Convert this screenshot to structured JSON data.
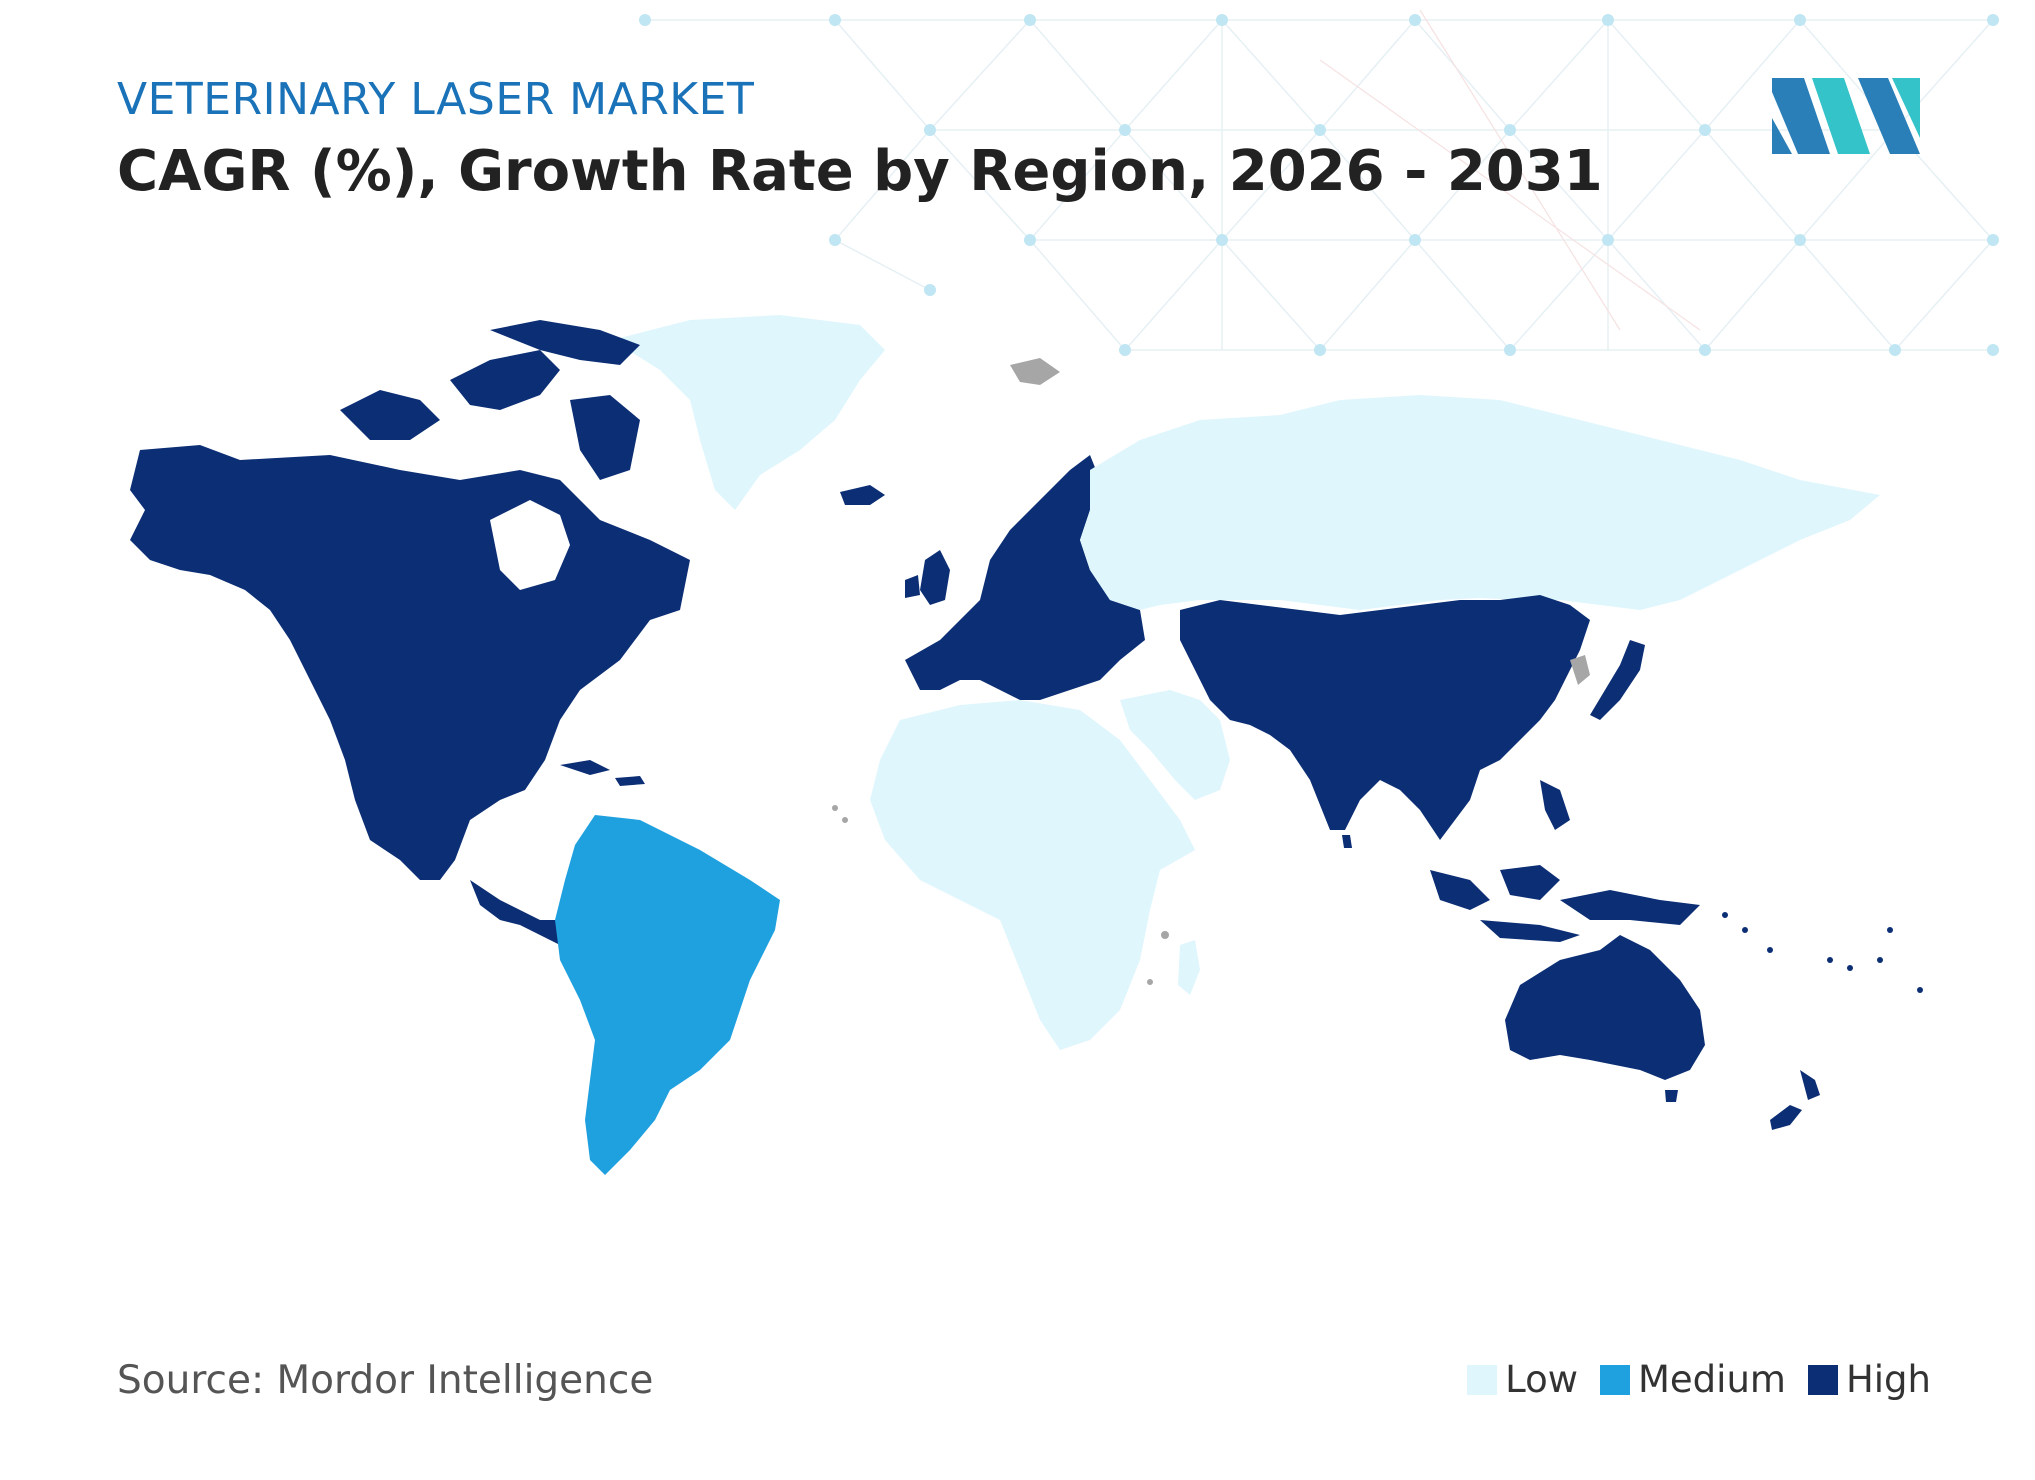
{
  "header": {
    "kicker": "VETERINARY LASER MARKET",
    "title": "CAGR (%), Growth Rate by Region, 2026 - 2031"
  },
  "footer": {
    "source": "Source: Mordor Intelligence"
  },
  "colors": {
    "low": "#dff6fc",
    "medium": "#1fa0df",
    "high": "#0b2e74",
    "no_data": "#a6a6a6",
    "kicker": "#1a73b8",
    "logo_left": "#2a7fb8",
    "logo_right": "#34c3c9"
  },
  "legend": {
    "items": [
      {
        "label": "Low",
        "color": "#dff6fc"
      },
      {
        "label": "Medium",
        "color": "#1fa0df"
      },
      {
        "label": "High",
        "color": "#0b2e74"
      }
    ]
  },
  "regions": {
    "north_america": "High",
    "europe": "High",
    "asia_pacific": "High",
    "south_america": "Medium",
    "middle_east_and_africa": "Low",
    "russia_and_greenland": "Low"
  },
  "logo_icon": "mordor-intelligence-logo-icon"
}
